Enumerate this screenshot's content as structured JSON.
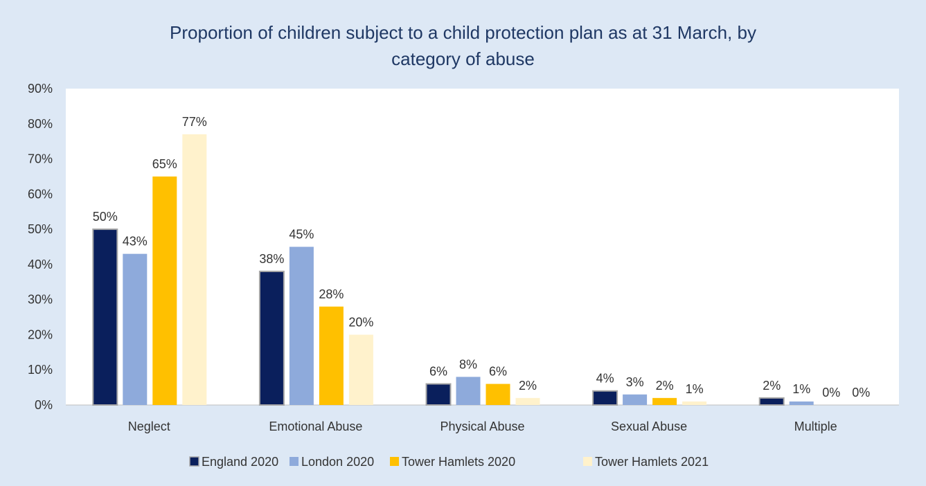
{
  "chart_data": {
    "type": "bar",
    "title_lines": [
      "Proportion of children subject to a child protection plan as at 31 March, by",
      "category of abuse"
    ],
    "categories": [
      "Neglect",
      "Emotional Abuse",
      "Physical Abuse",
      "Sexual Abuse",
      "Multiple"
    ],
    "series": [
      {
        "name": "England 2020",
        "color": "#0a1f5c",
        "values": [
          50,
          38,
          6,
          4,
          2
        ]
      },
      {
        "name": "London 2020",
        "color": "#8eaadb",
        "values": [
          43,
          45,
          8,
          3,
          1
        ]
      },
      {
        "name": "Tower Hamlets 2020",
        "color": "#ffc000",
        "values": [
          65,
          28,
          6,
          2,
          0
        ]
      },
      {
        "name": "Tower Hamlets 2021",
        "color": "#fff2cc",
        "values": [
          77,
          20,
          2,
          1,
          0
        ]
      }
    ],
    "ylim": [
      0,
      90
    ],
    "y_ticks": [
      "0%",
      "10%",
      "20%",
      "30%",
      "40%",
      "50%",
      "60%",
      "70%",
      "80%",
      "90%"
    ],
    "value_suffix": "%",
    "grid": false,
    "legend_position": "bottom",
    "plot_background": "#ffffff",
    "chart_background": "#dde8f5"
  }
}
